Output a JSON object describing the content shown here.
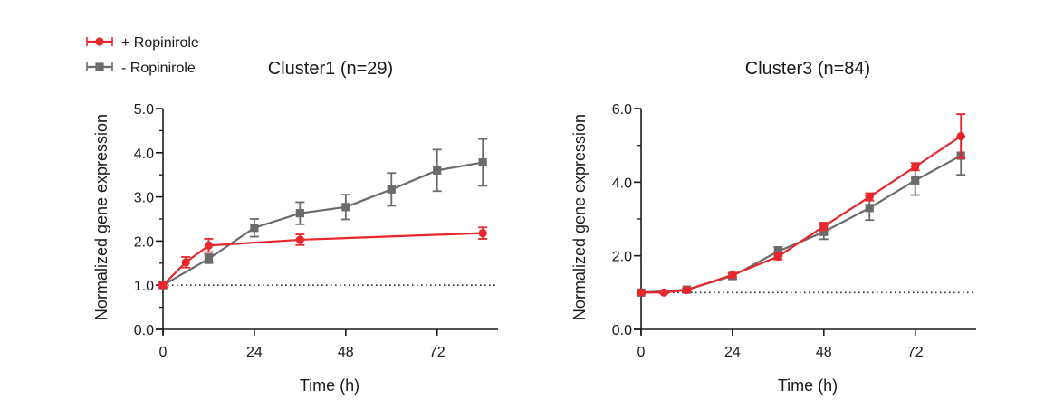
{
  "colors": {
    "red": "#e8262b",
    "gray": "#6b6b6b",
    "axis": "#1a1a1a",
    "ref": "#333333"
  },
  "legend": {
    "items": [
      {
        "label": "+ Ropinirole",
        "series": "red",
        "marker": "circle"
      },
      {
        "label": "- Ropinirole",
        "series": "gray",
        "marker": "square"
      }
    ]
  },
  "chart_data": [
    {
      "type": "line",
      "title": "Cluster1 (n=29)",
      "xlabel": "Time (h)",
      "ylabel": "Normalized gene expression",
      "xlim": [
        0,
        88
      ],
      "ylim": [
        0,
        5
      ],
      "xticks": [
        0,
        24,
        48,
        72
      ],
      "xtick_labels": [
        "0",
        "24",
        "48",
        "72"
      ],
      "yticks": [
        0,
        1,
        2,
        3,
        4,
        5
      ],
      "ytick_labels": [
        "0.0",
        "1.0",
        "2.0",
        "3.0",
        "4.0",
        "5.0"
      ],
      "minor_yticks": [
        0.5,
        1.5,
        2.5,
        3.5,
        4.5
      ],
      "reference_line": 1.0,
      "series": [
        {
          "name": "- Ropinirole",
          "color": "gray",
          "marker": "square",
          "x": [
            0,
            12,
            24,
            36,
            48,
            60,
            72,
            84
          ],
          "y": [
            1.0,
            1.6,
            2.3,
            2.63,
            2.77,
            3.17,
            3.6,
            3.78
          ],
          "err": [
            0.05,
            0.1,
            0.2,
            0.25,
            0.28,
            0.37,
            0.47,
            0.53
          ]
        },
        {
          "name": "+ Ropinirole",
          "color": "red",
          "marker": "circle",
          "x": [
            0,
            6,
            12,
            36,
            84
          ],
          "y": [
            1.0,
            1.52,
            1.9,
            2.03,
            2.18
          ],
          "err": [
            0.05,
            0.12,
            0.15,
            0.12,
            0.13
          ]
        }
      ]
    },
    {
      "type": "line",
      "title": "Cluster3 (n=84)",
      "xlabel": "Time (h)",
      "ylabel": "Normalized gene expression",
      "xlim": [
        0,
        88
      ],
      "ylim": [
        0,
        6
      ],
      "xticks": [
        0,
        24,
        48,
        72
      ],
      "xtick_labels": [
        "0",
        "24",
        "48",
        "72"
      ],
      "yticks": [
        0,
        2,
        4,
        6
      ],
      "ytick_labels": [
        "0.0",
        "2.0",
        "4.0",
        "6.0"
      ],
      "minor_yticks": [
        1,
        3,
        5
      ],
      "reference_line": 1.0,
      "series": [
        {
          "name": "- Ropinirole",
          "color": "gray",
          "marker": "square",
          "x": [
            0,
            12,
            24,
            36,
            48,
            60,
            72,
            84
          ],
          "y": [
            1.0,
            1.08,
            1.45,
            2.12,
            2.65,
            3.3,
            4.05,
            4.72
          ],
          "err": [
            0.03,
            0.05,
            0.08,
            0.12,
            0.2,
            0.33,
            0.4,
            0.52
          ]
        },
        {
          "name": "+ Ropinirole",
          "color": "red",
          "marker": "circle",
          "x": [
            0,
            6,
            12,
            24,
            36,
            48,
            60,
            72,
            84
          ],
          "y": [
            1.0,
            1.0,
            1.07,
            1.48,
            1.98,
            2.8,
            3.6,
            4.42,
            5.25
          ],
          "err": [
            0.02,
            0.02,
            0.04,
            0.06,
            0.08,
            0.1,
            0.1,
            0.1,
            0.6
          ]
        }
      ]
    }
  ]
}
